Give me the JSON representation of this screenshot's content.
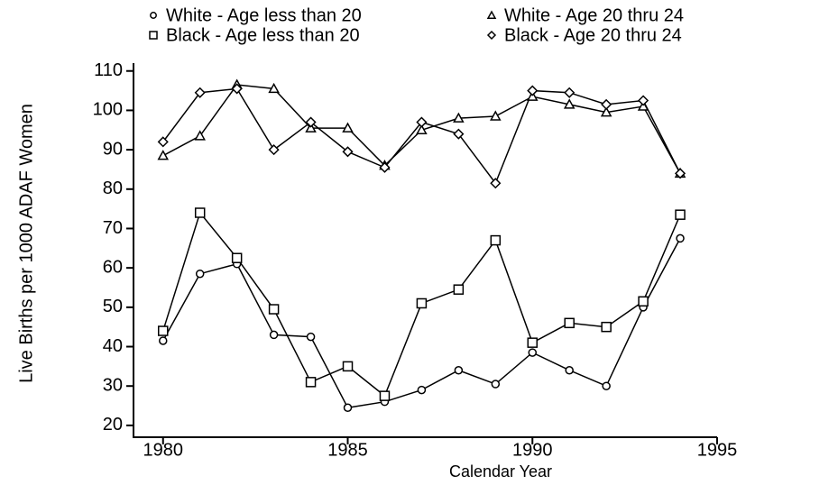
{
  "chart_data": {
    "type": "line",
    "x_label": "Calendar Year",
    "y_label": "Live Births per 1000 ADAF Women",
    "x": [
      1980,
      1981,
      1982,
      1983,
      1984,
      1985,
      1986,
      1987,
      1988,
      1989,
      1990,
      1991,
      1992,
      1993,
      1994
    ],
    "xlim": [
      1979.2,
      1995
    ],
    "xticks": [
      1980,
      1985,
      1990,
      1995
    ],
    "ylim": [
      17,
      112
    ],
    "yticks": [
      20,
      30,
      40,
      50,
      60,
      70,
      80,
      90,
      100,
      110
    ],
    "series": [
      {
        "name": "White - Age less than 20",
        "color": "#000000",
        "marker": "circle",
        "values": [
          41.5,
          58.5,
          61,
          43,
          42.5,
          24.5,
          26,
          29,
          34,
          30.5,
          38.5,
          34,
          30,
          50,
          67.5
        ]
      },
      {
        "name": "Black - Age less than 20",
        "color": "#000000",
        "marker": "square",
        "values": [
          44,
          74,
          62.5,
          49.5,
          31,
          35,
          27.5,
          51,
          54.5,
          67,
          41,
          46,
          45,
          51.5,
          73.5
        ]
      },
      {
        "name": "White - Age 20 thru 24",
        "color": "#000000",
        "marker": "triangle",
        "values": [
          88.5,
          93.5,
          106.5,
          105.5,
          95.5,
          95.5,
          86,
          95,
          98,
          98.5,
          103.5,
          101.5,
          99.5,
          101,
          84
        ]
      },
      {
        "name": "Black - Age 20 thru 24",
        "color": "#000000",
        "marker": "diamond",
        "values": [
          92,
          104.5,
          105.5,
          90,
          97,
          89.5,
          85.5,
          97,
          94,
          81.5,
          105,
          104.5,
          101.5,
          102.5,
          84
        ]
      }
    ]
  }
}
